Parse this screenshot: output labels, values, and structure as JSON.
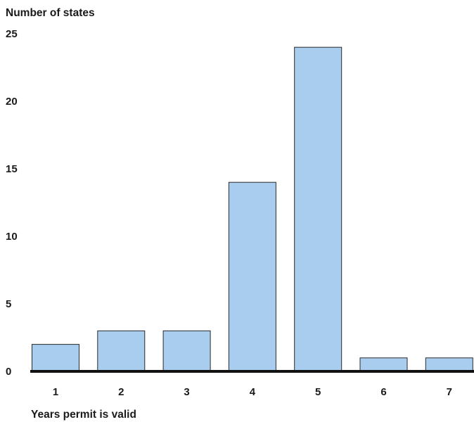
{
  "chart_data": {
    "type": "bar",
    "title": "",
    "ylabel": "Number of states",
    "xlabel": "Years permit is valid",
    "categories": [
      "1",
      "2",
      "3",
      "4",
      "5",
      "6",
      "7"
    ],
    "values": [
      2,
      3,
      3,
      14,
      24,
      1,
      1
    ],
    "ylim": [
      0,
      25
    ],
    "yticks": [
      "0",
      "5",
      "10",
      "15",
      "20",
      "25"
    ],
    "grid": false,
    "legend": "none",
    "colors": {
      "bar_fill": "#a8cdee",
      "bar_stroke": "#2a2a2a",
      "axis_line": "#111111",
      "text": "#1a1a1a"
    }
  }
}
